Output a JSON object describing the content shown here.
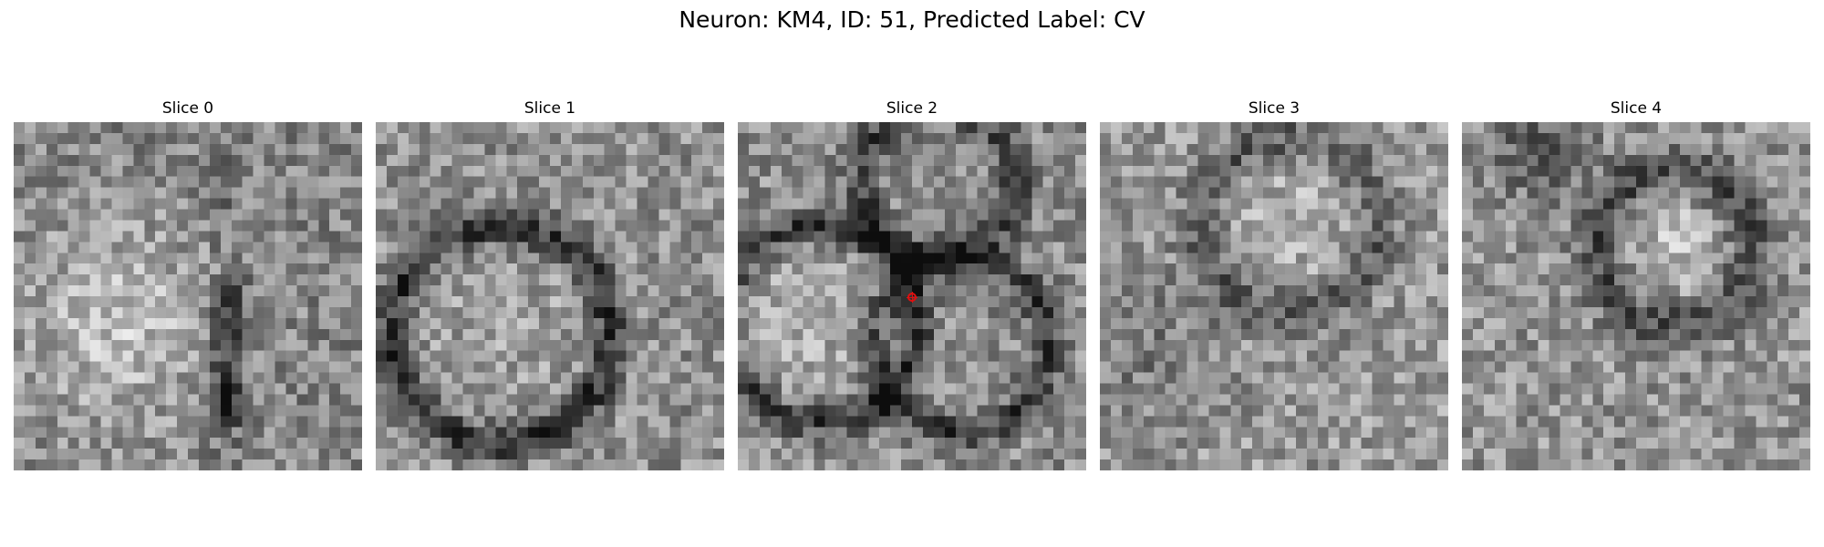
{
  "figure": {
    "title": "Neuron: KM4, ID: 51, Predicted Label: CV"
  },
  "colormap": "gray",
  "marker_color": "#e01010",
  "marker_icon": "red-crosshair-circle",
  "slices": [
    {
      "label": "Slice 0",
      "has_marker": false
    },
    {
      "label": "Slice 1",
      "has_marker": false
    },
    {
      "label": "Slice 2",
      "has_marker": true
    },
    {
      "label": "Slice 3",
      "has_marker": false
    },
    {
      "label": "Slice 4",
      "has_marker": false
    }
  ]
}
